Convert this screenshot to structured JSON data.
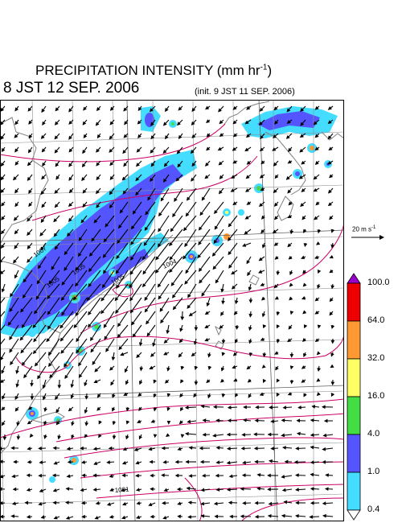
{
  "header": {
    "title": "PRECIPITATION INTENSITY (mm hr",
    "title_unit_exponent": "-1",
    "title_close": ")",
    "valid_time": "8 JST 12 SEP. 2006",
    "init_time": "(init. 9 JST 11 SEP. 2006)"
  },
  "wind_reference": {
    "label": "20 m s",
    "exponent": "-1",
    "speed_ms": 20
  },
  "colorbar": {
    "levels": [
      "100.0",
      "64.0",
      "32.0",
      "16.0",
      "4.0",
      "1.0",
      "0.4"
    ],
    "colors": [
      "#9900cc",
      "#ee0000",
      "#ff9933",
      "#ffff66",
      "#44dd44",
      "#5555ff",
      "#44ddff"
    ]
  },
  "pressure_labels": [
    "1007",
    "1005",
    "1005",
    "1005",
    "1004",
    "1001"
  ],
  "colors": {
    "land": "#808080",
    "grid": "#909090",
    "isobar": "#cc0066",
    "arrow": "#000000"
  }
}
